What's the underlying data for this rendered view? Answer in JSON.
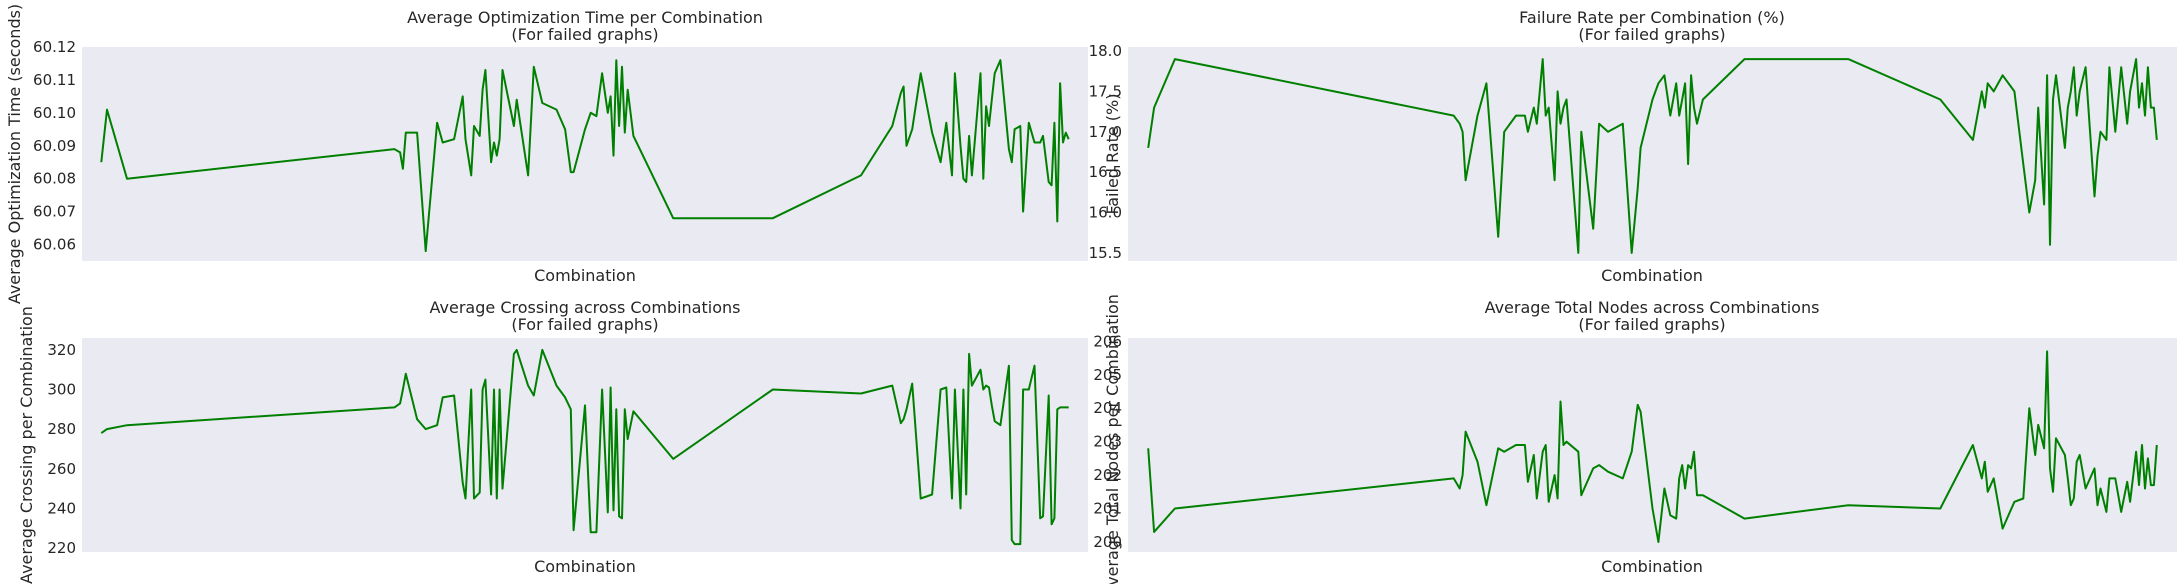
{
  "series_color": "#008000",
  "plot_background": "#eaeaf2",
  "chart_data": [
    {
      "type": "line",
      "title": "Average Optimization Time per Combination",
      "subtitle": "(For failed graphs)",
      "xlabel": "Combination",
      "ylabel": "Average Optimization Time (seconds)",
      "ylim": [
        60.055,
        60.12
      ],
      "yticks": [
        60.06,
        60.07,
        60.08,
        60.09,
        60.1,
        60.11,
        60.12
      ],
      "ytick_labels": [
        "60.06",
        "60.07",
        "60.08",
        "60.09",
        "60.10",
        "60.11",
        "60.12"
      ],
      "grid": false,
      "x": [
        0,
        2,
        9,
        103,
        105,
        106,
        107,
        111,
        114,
        118,
        120,
        124,
        127,
        128,
        130,
        131,
        133,
        134,
        135,
        137,
        138,
        139,
        140,
        141,
        145,
        146,
        150,
        152,
        155,
        160,
        163,
        165,
        166,
        170,
        172,
        174,
        176,
        178,
        179,
        180,
        181,
        182,
        183,
        184,
        185,
        187,
        201,
        236,
        267,
        278,
        281,
        282,
        283,
        285,
        288,
        292,
        295,
        297,
        299,
        300,
        302,
        303,
        304,
        305,
        306,
        309,
        310,
        311,
        312,
        313,
        314,
        316,
        319,
        320,
        321,
        323,
        324,
        326,
        328,
        330,
        331,
        333,
        334,
        335,
        336,
        337,
        338,
        339,
        340
      ],
      "values": [
        60.085,
        60.101,
        60.08,
        60.089,
        60.088,
        60.083,
        60.094,
        60.094,
        60.058,
        60.097,
        60.091,
        60.092,
        60.105,
        60.092,
        60.081,
        60.096,
        60.093,
        60.107,
        60.113,
        60.085,
        60.091,
        60.087,
        60.092,
        60.113,
        60.096,
        60.104,
        60.081,
        60.114,
        60.103,
        60.101,
        60.095,
        60.082,
        60.082,
        60.095,
        60.1,
        60.099,
        60.112,
        60.1,
        60.105,
        60.087,
        60.116,
        60.096,
        60.114,
        60.094,
        60.107,
        60.093,
        60.068,
        60.068,
        60.081,
        60.096,
        60.106,
        60.108,
        60.09,
        60.095,
        60.112,
        60.094,
        60.085,
        60.097,
        60.081,
        60.112,
        60.09,
        60.08,
        60.079,
        60.093,
        60.081,
        60.112,
        60.08,
        60.102,
        60.096,
        60.104,
        60.112,
        60.116,
        60.089,
        60.085,
        60.095,
        60.096,
        60.07,
        60.097,
        60.091,
        60.091,
        60.093,
        60.079,
        60.078,
        60.097,
        60.067,
        60.109,
        60.091,
        60.094,
        60.092
      ]
    },
    {
      "type": "line",
      "title": "Failure Rate per Combination (%)",
      "subtitle": "(For failed graphs)",
      "xlabel": "Combination",
      "ylabel": "Failed Rate (%)",
      "ylim": [
        15.4,
        18.05
      ],
      "yticks": [
        15.5,
        16.0,
        16.5,
        17.0,
        17.5,
        18.0
      ],
      "ytick_labels": [
        "15.5",
        "16.0",
        "16.5",
        "17.0",
        "17.5",
        "18.0"
      ],
      "grid": false,
      "x": [
        0,
        2,
        9,
        103,
        105,
        106,
        107,
        111,
        114,
        118,
        120,
        124,
        127,
        128,
        130,
        131,
        133,
        134,
        135,
        137,
        138,
        139,
        140,
        141,
        145,
        146,
        150,
        152,
        155,
        160,
        163,
        165,
        166,
        170,
        172,
        174,
        176,
        178,
        179,
        180,
        181,
        182,
        183,
        184,
        185,
        187,
        201,
        236,
        267,
        278,
        281,
        282,
        283,
        285,
        288,
        292,
        295,
        297,
        299,
        300,
        302,
        303,
        304,
        305,
        306,
        309,
        310,
        311,
        312,
        313,
        314,
        316,
        319,
        320,
        321,
        323,
        324,
        326,
        328,
        330,
        331,
        333,
        334,
        335,
        336,
        337,
        338,
        339,
        340
      ],
      "values": [
        16.8,
        17.3,
        17.9,
        17.2,
        17.1,
        17.0,
        16.4,
        17.2,
        17.6,
        15.7,
        17.0,
        17.2,
        17.2,
        17.0,
        17.3,
        17.1,
        17.9,
        17.2,
        17.3,
        16.4,
        17.5,
        17.1,
        17.3,
        17.4,
        15.5,
        17.0,
        15.8,
        17.1,
        17.0,
        17.1,
        15.5,
        16.3,
        16.8,
        17.4,
        17.6,
        17.7,
        17.2,
        17.6,
        17.2,
        17.4,
        17.6,
        16.6,
        17.7,
        17.3,
        17.1,
        17.4,
        17.9,
        17.9,
        17.4,
        16.9,
        17.5,
        17.3,
        17.6,
        17.5,
        17.7,
        17.5,
        16.6,
        16.0,
        16.4,
        17.3,
        16.1,
        17.7,
        15.6,
        17.4,
        17.7,
        16.8,
        17.3,
        17.5,
        17.8,
        17.2,
        17.5,
        17.8,
        16.2,
        16.7,
        17.0,
        16.9,
        17.8,
        17.0,
        17.8,
        17.1,
        17.5,
        17.9,
        17.3,
        17.6,
        17.2,
        17.8,
        17.3,
        17.3,
        16.9
      ]
    },
    {
      "type": "line",
      "title": "Average Crossing across Combinations",
      "subtitle": "(For failed graphs)",
      "xlabel": "Combination",
      "ylabel": "Average Crossing per Combination",
      "ylim": [
        218,
        326
      ],
      "yticks": [
        220,
        240,
        260,
        280,
        300,
        320
      ],
      "ytick_labels": [
        "220",
        "240",
        "260",
        "280",
        "300",
        "320"
      ],
      "grid": false,
      "x": [
        0,
        2,
        9,
        103,
        105,
        106,
        107,
        111,
        114,
        118,
        120,
        124,
        127,
        128,
        130,
        131,
        133,
        134,
        135,
        137,
        138,
        139,
        140,
        141,
        145,
        146,
        150,
        152,
        155,
        160,
        163,
        165,
        166,
        170,
        172,
        174,
        176,
        178,
        179,
        180,
        181,
        182,
        183,
        184,
        185,
        187,
        201,
        236,
        267,
        278,
        281,
        282,
        283,
        285,
        288,
        292,
        295,
        297,
        299,
        300,
        302,
        303,
        304,
        305,
        306,
        309,
        310,
        311,
        312,
        313,
        314,
        316,
        319,
        320,
        321,
        323,
        324,
        326,
        328,
        330,
        331,
        333,
        334,
        335,
        336,
        337,
        338,
        339,
        340
      ],
      "values": [
        278,
        280,
        282,
        291,
        293,
        300,
        308,
        285,
        280,
        282,
        296,
        297,
        253,
        245,
        300,
        245,
        248,
        300,
        305,
        247,
        300,
        245,
        300,
        250,
        318,
        320,
        302,
        297,
        320,
        302,
        296,
        290,
        229,
        292,
        228,
        228,
        300,
        238,
        301,
        239,
        290,
        236,
        235,
        290,
        275,
        289,
        265,
        300,
        298,
        302,
        283,
        285,
        290,
        303,
        245,
        247,
        300,
        301,
        245,
        300,
        240,
        300,
        247,
        318,
        302,
        310,
        300,
        302,
        301,
        292,
        284,
        282,
        312,
        224,
        222,
        222,
        300,
        300,
        312,
        235,
        236,
        297,
        232,
        235,
        290,
        291,
        291,
        291,
        291
      ],
      "note_x": "indexed combinations"
    },
    {
      "type": "line",
      "title": "Average Total Nodes across Combinations",
      "subtitle": "(For failed graphs)",
      "xlabel": "Combination",
      "ylabel": "Average Total Nodes per Combination",
      "ylim": [
        199.7,
        206.1
      ],
      "yticks": [
        200,
        201,
        202,
        203,
        204,
        205,
        206
      ],
      "ytick_labels": [
        "200",
        "201",
        "202",
        "203",
        "204",
        "205",
        "206"
      ],
      "grid": false,
      "x": [
        0,
        2,
        9,
        103,
        105,
        106,
        107,
        111,
        114,
        118,
        120,
        124,
        127,
        128,
        130,
        131,
        133,
        134,
        135,
        137,
        138,
        139,
        140,
        141,
        145,
        146,
        150,
        152,
        155,
        160,
        163,
        165,
        166,
        170,
        172,
        174,
        176,
        178,
        179,
        180,
        181,
        182,
        183,
        184,
        185,
        187,
        201,
        236,
        267,
        278,
        281,
        282,
        283,
        285,
        288,
        292,
        295,
        297,
        299,
        300,
        302,
        303,
        304,
        305,
        306,
        309,
        310,
        311,
        312,
        313,
        314,
        316,
        319,
        320,
        321,
        323,
        324,
        326,
        328,
        330,
        331,
        333,
        334,
        335,
        336,
        337,
        338,
        339,
        340
      ],
      "values": [
        202.8,
        200.3,
        201.0,
        201.9,
        201.6,
        202.0,
        203.3,
        202.4,
        201.1,
        202.8,
        202.7,
        202.9,
        202.9,
        201.8,
        202.6,
        201.3,
        202.7,
        202.9,
        201.2,
        202.0,
        201.3,
        204.2,
        202.9,
        203.0,
        202.7,
        201.4,
        202.2,
        202.3,
        202.1,
        201.9,
        202.7,
        204.1,
        203.9,
        201.0,
        200.0,
        201.6,
        200.8,
        200.7,
        201.9,
        202.3,
        201.6,
        202.3,
        202.2,
        202.7,
        201.4,
        201.4,
        200.7,
        201.1,
        201.0,
        202.9,
        201.9,
        202.4,
        201.5,
        201.9,
        200.4,
        201.2,
        201.3,
        204.0,
        202.6,
        203.5,
        202.8,
        205.7,
        202.2,
        201.5,
        203.1,
        202.6,
        201.9,
        201.1,
        201.3,
        202.4,
        202.6,
        201.6,
        202.2,
        201.1,
        201.6,
        200.9,
        201.9,
        201.9,
        200.9,
        201.8,
        201.2,
        202.7,
        201.7,
        202.9,
        201.6,
        202.5,
        201.7,
        201.7,
        202.9
      ],
      "note_x": "indexed combinations"
    }
  ]
}
